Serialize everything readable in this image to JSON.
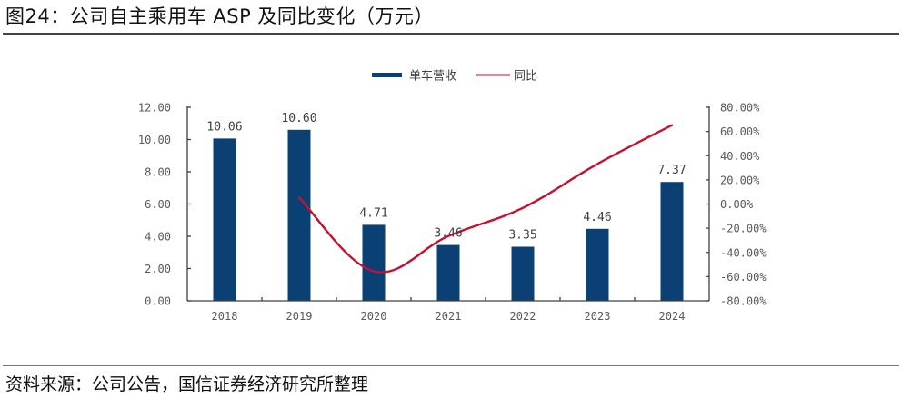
{
  "header": {
    "title": "图24：公司自主乘用车 ASP 及同比变化（万元）"
  },
  "footer": {
    "source": "资料来源：公司公告，国信证券经济研究所整理"
  },
  "colors": {
    "bar": "#0b4074",
    "line": "#c8102e",
    "axis": "#404040"
  },
  "chart_data": {
    "type": "bar",
    "title": "公司自主乘用车 ASP 及同比变化（万元）",
    "categories": [
      "2018",
      "2019",
      "2020",
      "2021",
      "2022",
      "2023",
      "2024"
    ],
    "series": [
      {
        "name": "单车营收",
        "type": "bar",
        "axis": "left",
        "values": [
          10.06,
          10.6,
          4.71,
          3.46,
          3.35,
          4.46,
          7.37
        ],
        "labels": [
          "10.06",
          "10.60",
          "4.71",
          "3.46",
          "3.35",
          "4.46",
          "7.37"
        ]
      },
      {
        "name": "同比",
        "type": "line",
        "axis": "right",
        "smooth": true,
        "values": [
          null,
          5.4,
          -55.6,
          -26.5,
          -3.2,
          33.1,
          65.2
        ],
        "unit": "%"
      }
    ],
    "y_left": {
      "min": 0,
      "max": 12,
      "step": 2,
      "ticks": [
        "0.00",
        "2.00",
        "4.00",
        "6.00",
        "8.00",
        "10.00",
        "12.00"
      ]
    },
    "y_right": {
      "min": -80,
      "max": 80,
      "step": 20,
      "ticks": [
        "-80.00%",
        "-60.00%",
        "-40.00%",
        "-20.00%",
        "0.00%",
        "20.00%",
        "40.00%",
        "60.00%",
        "80.00%"
      ]
    },
    "xlabel": "",
    "ylabel": "",
    "grid": false,
    "legend": {
      "position": "top-center",
      "entries": [
        "单车营收",
        "同比"
      ]
    }
  }
}
